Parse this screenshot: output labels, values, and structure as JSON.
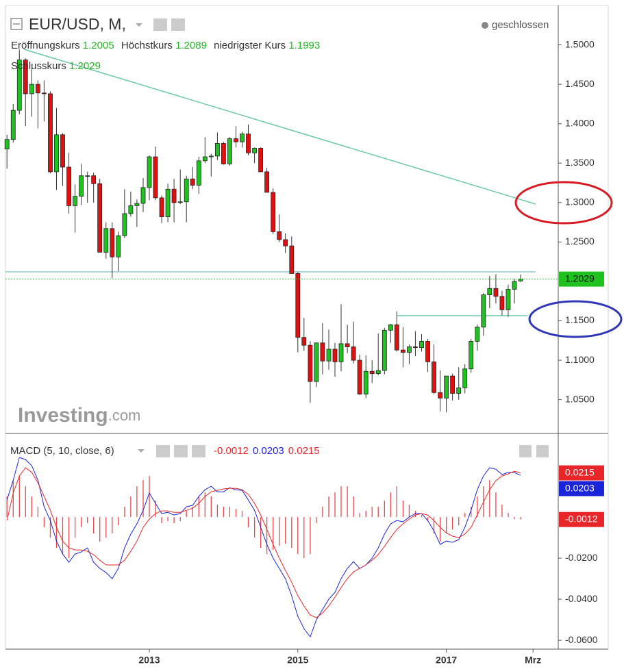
{
  "chart_data": [
    {
      "type": "candlestick",
      "title": "EUR/USD, M,",
      "status": "geschlossen",
      "open_label": "Eröffnungskurs",
      "high_label": "Höchstkurs",
      "low_label": "niedrigster Kurs",
      "close_label": "Schlusskurs",
      "watermark": "Investing",
      "watermark_suffix": ".com",
      "up_color": "#1fc21f",
      "down_color": "#e01010",
      "x": [
        2011.083,
        2011.167,
        2011.25,
        2011.333,
        2011.417,
        2011.5,
        2011.583,
        2011.667,
        2011.75,
        2011.833,
        2011.917,
        2012,
        2012.083,
        2012.167,
        2012.25,
        2012.333,
        2012.417,
        2012.5,
        2012.583,
        2012.667,
        2012.75,
        2012.833,
        2012.917,
        2013,
        2013.083,
        2013.167,
        2013.25,
        2013.333,
        2013.417,
        2013.5,
        2013.583,
        2013.667,
        2013.75,
        2013.833,
        2013.917,
        2014,
        2014.083,
        2014.167,
        2014.25,
        2014.333,
        2014.417,
        2014.5,
        2014.583,
        2014.667,
        2014.75,
        2014.833,
        2014.917,
        2015,
        2015.083,
        2015.167,
        2015.25,
        2015.333,
        2015.417,
        2015.5,
        2015.583,
        2015.667,
        2015.75,
        2015.833,
        2015.917,
        2016,
        2016.083,
        2016.167,
        2016.25,
        2016.333,
        2016.417,
        2016.5,
        2016.583,
        2016.667,
        2016.75,
        2016.833,
        2016.917,
        2017,
        2017.083,
        2017.167,
        2017.25,
        2017.333,
        2017.417,
        2017.5,
        2017.583,
        2017.667,
        2017.75,
        2017.833,
        2017.917,
        2018
      ],
      "open": [
        1.368,
        1.38,
        1.417,
        1.481,
        1.438,
        1.45,
        1.439,
        1.438,
        1.339,
        1.386,
        1.345,
        1.296,
        1.308,
        1.334,
        1.334,
        1.324,
        1.237,
        1.267,
        1.231,
        1.258,
        1.286,
        1.296,
        1.299,
        1.319,
        1.358,
        1.306,
        1.282,
        1.317,
        1.3,
        1.301,
        1.33,
        1.322,
        1.353,
        1.358,
        1.359,
        1.375,
        1.349,
        1.381,
        1.377,
        1.387,
        1.363,
        1.369,
        1.339,
        1.313,
        1.263,
        1.253,
        1.245,
        1.21,
        1.129,
        1.119,
        1.073,
        1.122,
        1.099,
        1.114,
        1.098,
        1.121,
        1.117,
        1.1,
        1.057,
        1.086,
        1.083,
        1.087,
        1.138,
        1.145,
        1.113,
        1.11,
        1.117,
        1.116,
        1.124,
        1.098,
        1.059,
        1.052,
        1.08,
        1.058,
        1.065,
        1.089,
        1.124,
        1.142,
        1.183,
        1.191,
        1.181,
        1.164,
        1.19,
        1.2005
      ],
      "high": [
        1.386,
        1.425,
        1.494,
        1.483,
        1.47,
        1.455,
        1.455,
        1.441,
        1.42,
        1.388,
        1.363,
        1.323,
        1.349,
        1.339,
        1.338,
        1.33,
        1.275,
        1.275,
        1.263,
        1.317,
        1.314,
        1.304,
        1.331,
        1.36,
        1.371,
        1.309,
        1.324,
        1.33,
        1.342,
        1.334,
        1.345,
        1.358,
        1.383,
        1.362,
        1.389,
        1.377,
        1.383,
        1.397,
        1.39,
        1.399,
        1.37,
        1.37,
        1.344,
        1.318,
        1.285,
        1.261,
        1.257,
        1.212,
        1.154,
        1.124,
        1.122,
        1.147,
        1.139,
        1.122,
        1.171,
        1.145,
        1.149,
        1.107,
        1.106,
        1.1,
        1.134,
        1.141,
        1.146,
        1.162,
        1.142,
        1.12,
        1.137,
        1.133,
        1.127,
        1.12,
        1.087,
        1.08,
        1.083,
        1.091,
        1.095,
        1.127,
        1.145,
        1.185,
        1.207,
        1.209,
        1.188,
        1.196,
        1.203,
        1.2089
      ],
      "low": [
        1.343,
        1.376,
        1.412,
        1.397,
        1.409,
        1.394,
        1.403,
        1.337,
        1.316,
        1.321,
        1.286,
        1.262,
        1.297,
        1.3,
        1.3,
        1.237,
        1.229,
        1.204,
        1.213,
        1.255,
        1.282,
        1.269,
        1.288,
        1.303,
        1.303,
        1.274,
        1.275,
        1.275,
        1.298,
        1.275,
        1.317,
        1.311,
        1.35,
        1.333,
        1.354,
        1.348,
        1.347,
        1.37,
        1.37,
        1.36,
        1.35,
        1.339,
        1.313,
        1.26,
        1.25,
        1.236,
        1.21,
        1.11,
        1.112,
        1.046,
        1.066,
        1.082,
        1.088,
        1.079,
        1.086,
        1.109,
        1.096,
        1.056,
        1.052,
        1.071,
        1.081,
        1.082,
        1.122,
        1.111,
        1.091,
        1.095,
        1.105,
        1.111,
        1.085,
        1.057,
        1.035,
        1.034,
        1.049,
        1.05,
        1.058,
        1.084,
        1.112,
        1.131,
        1.166,
        1.172,
        1.157,
        1.155,
        1.172,
        1.1993
      ],
      "close": [
        1.38,
        1.417,
        1.481,
        1.438,
        1.45,
        1.439,
        1.438,
        1.339,
        1.386,
        1.345,
        1.296,
        1.308,
        1.334,
        1.334,
        1.324,
        1.237,
        1.267,
        1.231,
        1.258,
        1.286,
        1.296,
        1.299,
        1.319,
        1.358,
        1.306,
        1.282,
        1.317,
        1.3,
        1.301,
        1.33,
        1.322,
        1.353,
        1.358,
        1.359,
        1.375,
        1.349,
        1.381,
        1.377,
        1.387,
        1.363,
        1.369,
        1.339,
        1.313,
        1.263,
        1.253,
        1.245,
        1.21,
        1.129,
        1.119,
        1.073,
        1.122,
        1.099,
        1.114,
        1.098,
        1.121,
        1.117,
        1.1,
        1.057,
        1.086,
        1.083,
        1.087,
        1.138,
        1.145,
        1.113,
        1.11,
        1.117,
        1.116,
        1.124,
        1.098,
        1.059,
        1.052,
        1.08,
        1.058,
        1.065,
        1.089,
        1.124,
        1.142,
        1.183,
        1.191,
        1.181,
        1.164,
        1.19,
        1.2,
        1.2029
      ],
      "ylim": [
        1.008,
        1.55
      ],
      "yticks": [
        {
          "value": 1.5,
          "label": "1.5000"
        },
        {
          "value": 1.45,
          "label": "1.4500"
        },
        {
          "value": 1.4,
          "label": "1.4000"
        },
        {
          "value": 1.35,
          "label": "1.3500"
        },
        {
          "value": 1.3,
          "label": "1.3000"
        },
        {
          "value": 1.25,
          "label": "1.2500"
        },
        {
          "value": 1.15,
          "label": "1.1500"
        },
        {
          "value": 1.1,
          "label": "1.1000"
        },
        {
          "value": 1.05,
          "label": "1.0500"
        }
      ]
    },
    {
      "type": "macd",
      "title": "MACD (5, 10, close, 6)",
      "xlim": [
        2011.063,
        2018.507
      ],
      "xticks": [
        2013,
        2015,
        2017,
        {
          "value": 2018.167,
          "label": "Mrz"
        }
      ],
      "ylim": [
        -0.0643,
        0.0397
      ],
      "yticks": [
        {
          "value": -0.02,
          "label": "-0.0200"
        },
        {
          "value": -0.04,
          "label": "-0.0400"
        },
        {
          "value": -0.06,
          "label": "-0.0600"
        }
      ],
      "series": [
        {
          "type": "bar",
          "color": "#e8262a",
          "values": [
            0.01,
            0.018,
            0.02,
            0.015,
            0.01,
            0.005,
            -0.005,
            -0.01,
            -0.015,
            -0.018,
            -0.02,
            -0.01,
            -0.005,
            -0.003,
            -0.008,
            -0.012,
            -0.01,
            -0.008,
            -0.004,
            0.005,
            0.01,
            0.015,
            0.018,
            0.02,
            0.008,
            -0.003,
            -0.002,
            -0.003,
            -0.002,
            0.003,
            0.005,
            0.01,
            0.012,
            0.01,
            0.006,
            0.005,
            0.005,
            0.004,
            0.003,
            -0.005,
            -0.01,
            -0.015,
            -0.018,
            -0.016,
            -0.014,
            -0.013,
            -0.015,
            -0.018,
            -0.02,
            -0.018,
            -0.003,
            0.005,
            0.01,
            0.012,
            0.015,
            0.015,
            0.01,
            0.002,
            0.003,
            0.005,
            0.005,
            0.008,
            0.012,
            0.015,
            0.008,
            0.006,
            0.003,
            0.001,
            -0.002,
            -0.008,
            -0.012,
            -0.008,
            -0.006,
            -0.004,
            0.002,
            0.005,
            0.01,
            0.015,
            0.018,
            0.012,
            0.006,
            0.002,
            -0.001,
            -0.0012
          ]
        },
        {
          "type": "line",
          "color": "#1a24d8",
          "values": [
            0.0083,
            0.018,
            0.029,
            0.028,
            0.025,
            0.018,
            0.005,
            -0.0017,
            -0.0117,
            -0.018,
            -0.022,
            -0.018,
            -0.017,
            -0.015,
            -0.022,
            -0.025,
            -0.027,
            -0.03,
            -0.025,
            -0.015,
            -0.0083,
            -0.0033,
            0.0033,
            0.0117,
            0.0067,
            0.0017,
            0.0023,
            0.001,
            0.0017,
            0.005,
            0.0057,
            0.01,
            0.0133,
            0.015,
            0.0123,
            0.0123,
            0.0143,
            0.0133,
            0.013,
            0.0083,
            0.0033,
            -0.005,
            -0.0133,
            -0.02,
            -0.025,
            -0.03,
            -0.0383,
            -0.0483,
            -0.0543,
            -0.0583,
            -0.05,
            -0.045,
            -0.04,
            -0.0367,
            -0.03,
            -0.025,
            -0.0217,
            -0.025,
            -0.0233,
            -0.02,
            -0.015,
            -0.0083,
            -0.0033,
            -0.0017,
            -0.0023,
            0,
            0.0017,
            0.0017,
            -0.0017,
            -0.0067,
            -0.0133,
            -0.0117,
            -0.0123,
            -0.011,
            -0.005,
            0.0033,
            0.0133,
            0.02,
            0.024,
            0.0233,
            0.0207,
            0.0217,
            0.0217,
            0.0203
          ]
        },
        {
          "type": "line",
          "color": "#e8262a",
          "values": [
            -0.0017,
            0.0117,
            0.02,
            0.024,
            0.0217,
            0.0167,
            0.01,
            0.0033,
            -0.005,
            -0.0117,
            -0.015,
            -0.016,
            -0.016,
            -0.0167,
            -0.0183,
            -0.021,
            -0.0233,
            -0.0233,
            -0.0233,
            -0.021,
            -0.0167,
            -0.0117,
            -0.005,
            -0.001,
            0.0017,
            0.003,
            0.003,
            0.0023,
            0.0023,
            0.0033,
            0.0043,
            0.0067,
            0.01,
            0.0123,
            0.013,
            0.0137,
            0.014,
            0.014,
            0.0133,
            0.011,
            0.0067,
            0.001,
            -0.006,
            -0.0133,
            -0.02,
            -0.026,
            -0.0317,
            -0.0383,
            -0.0433,
            -0.0477,
            -0.049,
            -0.0467,
            -0.0433,
            -0.039,
            -0.0343,
            -0.03,
            -0.0267,
            -0.025,
            -0.0233,
            -0.021,
            -0.0183,
            -0.0143,
            -0.01,
            -0.006,
            -0.0033,
            -0.001,
            0.001,
            0.0017,
            0.001,
            -0.0017,
            -0.005,
            -0.0077,
            -0.0093,
            -0.01,
            -0.0083,
            -0.005,
            0.001,
            0.0073,
            0.0133,
            0.0177,
            0.02,
            0.021,
            0.0223,
            0.0215
          ]
        }
      ]
    }
  ]
}
